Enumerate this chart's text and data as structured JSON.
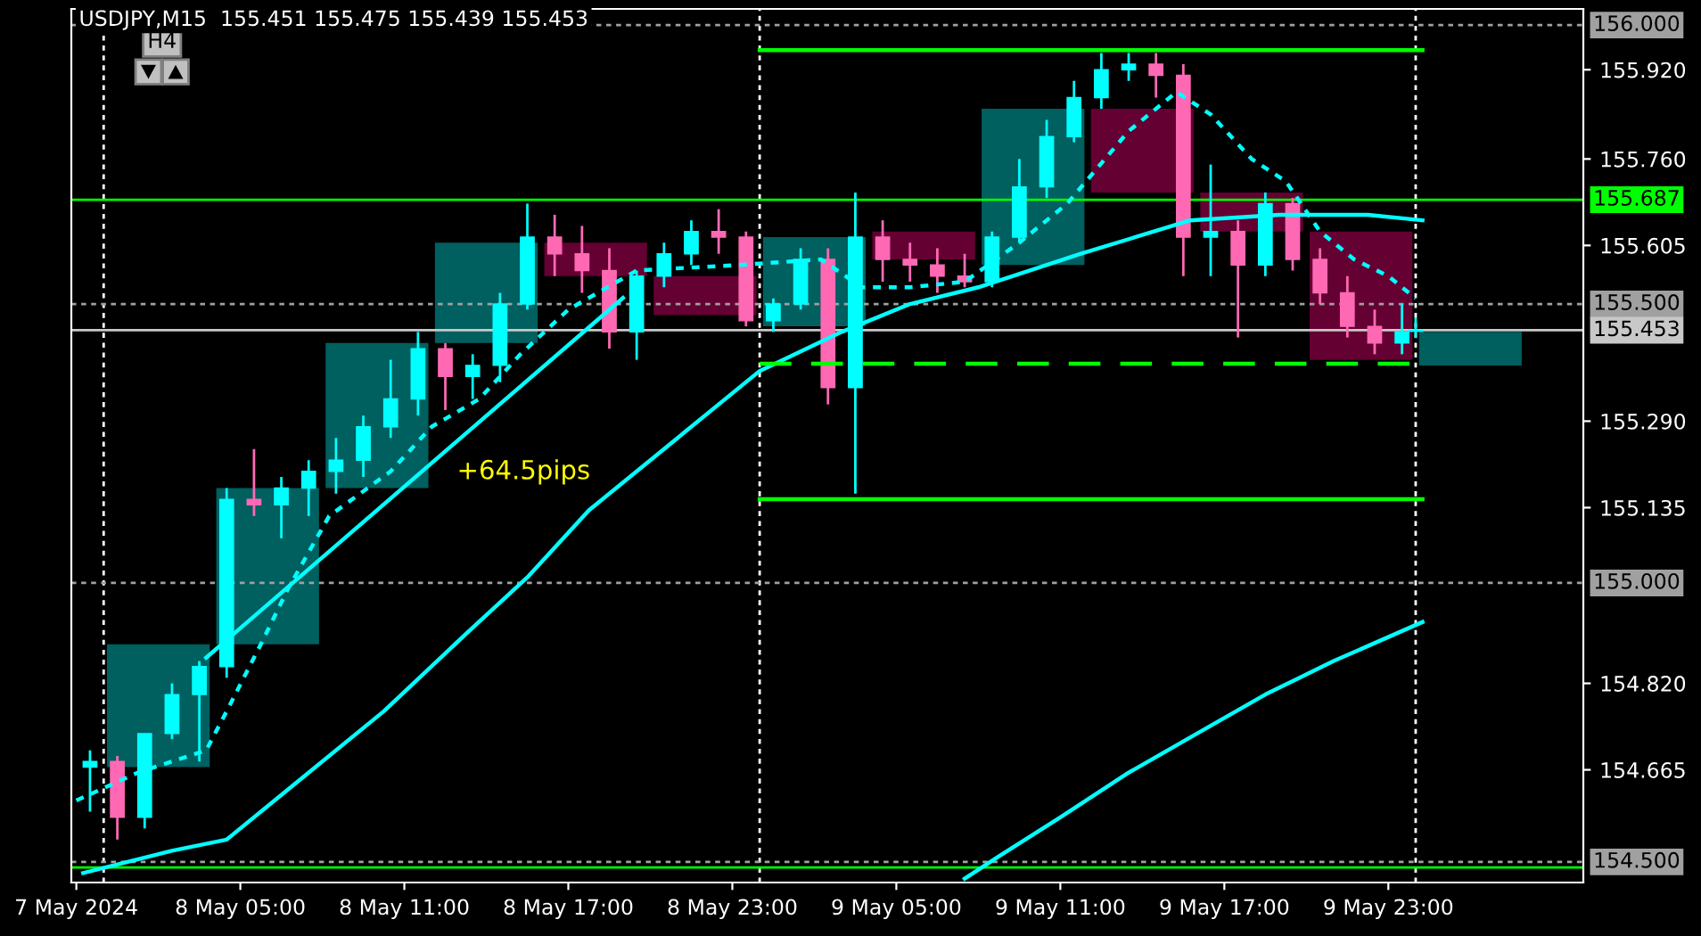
{
  "chart_data": {
    "type": "candlestick",
    "title": "USDJPY,M15  155.451 155.475 155.439 155.453",
    "annotations": [
      "H4",
      "+64.5pips"
    ],
    "xlim": [
      "2024-05-07T22:49",
      "2024-05-10T06:08"
    ],
    "ylim": [
      154.463,
      156.029
    ],
    "xticks": [
      {
        "value": "2024-05-07T23:00",
        "label": "7 May 2024"
      },
      {
        "value": "2024-05-08T05:00",
        "label": "8 May 05:00"
      },
      {
        "value": "2024-05-08T11:00",
        "label": "8 May 11:00"
      },
      {
        "value": "2024-05-08T17:00",
        "label": "8 May 17:00"
      },
      {
        "value": "2024-05-08T23:00",
        "label": "8 May 23:00"
      },
      {
        "value": "2024-05-09T05:00",
        "label": "9 May 05:00"
      },
      {
        "value": "2024-05-09T11:00",
        "label": "9 May 11:00"
      },
      {
        "value": "2024-05-09T17:00",
        "label": "9 May 17:00"
      },
      {
        "value": "2024-05-09T23:00",
        "label": "9 May 23:00"
      }
    ],
    "yticks": [
      {
        "value": 155.92,
        "label": "155.920"
      },
      {
        "value": 155.76,
        "label": "155.760"
      },
      {
        "value": 155.605,
        "label": "155.605"
      },
      {
        "value": 155.29,
        "label": "155.290"
      },
      {
        "value": 155.135,
        "label": "155.135"
      },
      {
        "value": 154.82,
        "label": "154.820"
      },
      {
        "value": 154.665,
        "label": "154.665"
      }
    ],
    "grid": false,
    "legend": false,
    "ref_lines": [
      {
        "axis": "x",
        "value": "2024-05-08T00:00",
        "color": "#ffffff",
        "line_style": "dotted"
      },
      {
        "axis": "x",
        "value": "2024-05-09T00:00",
        "color": "#ffffff",
        "line_style": "dotted"
      },
      {
        "axis": "x",
        "value": "2024-05-10T00:00",
        "color": "#ffffff",
        "line_style": "dotted"
      },
      {
        "axis": "y",
        "value": 156.0,
        "label": "156.000",
        "color": "#a0a0a0",
        "line_style": "dotted"
      },
      {
        "axis": "y",
        "value": 155.687,
        "label": "155.687",
        "color": "#00ff00",
        "line_style": "solid"
      },
      {
        "axis": "y",
        "value": 155.5,
        "label": "155.500",
        "color": "#a0a0a0",
        "line_style": "dotted"
      },
      {
        "axis": "y",
        "value": 155.453,
        "label": "155.453",
        "color": "#c8c8c8",
        "line_style": "solid"
      },
      {
        "axis": "y",
        "value": 155.0,
        "label": "155.000",
        "color": "#a0a0a0",
        "line_style": "dotted"
      },
      {
        "axis": "y",
        "value": 154.5,
        "label": "154.500",
        "color": "#a0a0a0",
        "line_style": "dotted"
      },
      {
        "axis": "y",
        "value": 154.49,
        "color": "#00ff00",
        "line_style": "solid"
      }
    ],
    "series": [
      {
        "type": "bar",
        "x": [
          "2024-05-08T02:00",
          "2024-05-08T06:00",
          "2024-05-08T10:00",
          "2024-05-08T14:00",
          "2024-05-08T18:00",
          "2024-05-08T22:00",
          "2024-05-09T02:00",
          "2024-05-09T06:00",
          "2024-05-09T10:00",
          "2024-05-09T14:00",
          "2024-05-09T18:00",
          "2024-05-09T22:00",
          "2024-05-10T02:00"
        ],
        "base": [
          154.67,
          154.89,
          155.17,
          155.43,
          155.55,
          155.48,
          155.46,
          155.58,
          155.57,
          155.7,
          155.63,
          155.4,
          155.39
        ],
        "values": [
          0.22,
          0.28,
          0.26,
          0.18,
          0.06,
          0.07,
          0.16,
          0.05,
          0.28,
          0.15,
          0.07,
          0.23,
          0.06
        ],
        "colors": [
          "#005f5f",
          "#005f5f",
          "#005f5f",
          "#005f5f",
          "#640032",
          "#640032",
          "#005f5f",
          "#640032",
          "#005f5f",
          "#640032",
          "#640032",
          "#640032",
          "#005f5f"
        ]
      },
      {
        "type": "line",
        "color": "#00ffff",
        "line_style": "solid",
        "x": [
          "2024-05-07T23:15",
          "2024-05-08T02:30",
          "2024-05-08T04:30",
          "2024-05-08T07:00",
          "2024-05-08T10:15",
          "2024-05-08T13:30",
          "2024-05-08T15:30",
          "2024-05-08T17:45",
          "2024-05-08T21:00",
          "2024-05-09T00:00",
          "2024-05-09T03:00",
          "2024-05-09T05:30",
          "2024-05-09T08:00",
          "2024-05-09T11:45",
          "2024-05-09T13:45",
          "2024-05-09T15:45",
          "2024-05-09T19:00",
          "2024-05-09T22:15",
          "2024-05-10T00:15"
        ],
        "values": [
          154.48,
          154.52,
          154.54,
          154.64,
          154.77,
          154.92,
          155.01,
          155.13,
          155.26,
          155.38,
          155.45,
          155.5,
          155.53,
          155.59,
          155.62,
          155.65,
          155.66,
          155.66,
          155.65
        ]
      },
      {
        "type": "line",
        "color": "#00ffff",
        "line_style": "dotted",
        "x": [
          "2024-05-07T23:00",
          "2024-05-08T01:15",
          "2024-05-08T03:45",
          "2024-05-08T04:30",
          "2024-05-08T05:45",
          "2024-05-08T06:45",
          "2024-05-08T08:15",
          "2024-05-08T10:30",
          "2024-05-08T12:00",
          "2024-05-08T13:45",
          "2024-05-08T15:15",
          "2024-05-08T17:00",
          "2024-05-08T19:30",
          "2024-05-08T23:15",
          "2024-05-09T02:15",
          "2024-05-09T03:45",
          "2024-05-09T05:30",
          "2024-05-09T07:30",
          "2024-05-09T09:30",
          "2024-05-09T11:15",
          "2024-05-09T13:30",
          "2024-05-09T15:15",
          "2024-05-09T16:30",
          "2024-05-09T18:00",
          "2024-05-09T19:15",
          "2024-05-09T20:30",
          "2024-05-09T21:45",
          "2024-05-09T23:00",
          "2024-05-10T00:00"
        ],
        "values": [
          154.61,
          154.66,
          154.7,
          154.77,
          154.89,
          154.99,
          155.12,
          155.2,
          155.28,
          155.33,
          155.41,
          155.49,
          155.56,
          155.57,
          155.58,
          155.53,
          155.53,
          155.54,
          155.61,
          155.68,
          155.81,
          155.88,
          155.84,
          155.76,
          155.72,
          155.63,
          155.58,
          155.55,
          155.51
        ]
      },
      {
        "type": "line",
        "color": "#00ffff",
        "line_style": "solid",
        "x": [
          "2024-05-09T07:30",
          "2024-05-09T08:45",
          "2024-05-09T11:00",
          "2024-05-09T13:30",
          "2024-05-09T16:00",
          "2024-05-09T18:30",
          "2024-05-09T21:00",
          "2024-05-10T00:15"
        ],
        "values": [
          154.47,
          154.51,
          154.58,
          154.66,
          154.73,
          154.8,
          154.86,
          154.93
        ]
      },
      {
        "type": "line",
        "color": "#00ffff",
        "line_style": "solid",
        "x": [
          "2024-05-08T03:45",
          "2024-05-08T19:00"
        ],
        "values": [
          154.866,
          155.511
        ]
      },
      {
        "type": "line",
        "color": "#00ff00",
        "line_style": "solid",
        "x": [
          "2024-05-09T00:00",
          "2024-05-10T00:15"
        ],
        "values": [
          155.955,
          155.955
        ]
      },
      {
        "type": "line",
        "color": "#00ff00",
        "line_style": "solid",
        "x": [
          "2024-05-09T00:00",
          "2024-05-10T00:15"
        ],
        "values": [
          155.15,
          155.15
        ]
      },
      {
        "type": "line",
        "color": "#00ff00",
        "line_style": "dashed",
        "x": [
          "2024-05-09T00:00",
          "2024-05-10T00:00"
        ],
        "values": [
          155.393,
          155.393
        ]
      },
      {
        "color": "#00ffff",
        "x": [
          "2024-05-07T23:30",
          "2024-05-08T01:30",
          "2024-05-08T02:30",
          "2024-05-08T03:30",
          "2024-05-08T04:30",
          "2024-05-08T06:30",
          "2024-05-08T07:30",
          "2024-05-08T08:30",
          "2024-05-08T09:30",
          "2024-05-08T10:30",
          "2024-05-08T11:30",
          "2024-05-08T13:30",
          "2024-05-08T14:30",
          "2024-05-08T15:30",
          "2024-05-08T19:30",
          "2024-05-08T20:30",
          "2024-05-08T21:30",
          "2024-05-09T00:30",
          "2024-05-09T01:30",
          "2024-05-09T03:30",
          "2024-05-09T08:30",
          "2024-05-09T09:30",
          "2024-05-09T10:30",
          "2024-05-09T11:30",
          "2024-05-09T12:30",
          "2024-05-09T13:30",
          "2024-05-09T16:30",
          "2024-05-09T18:30",
          "2024-05-09T23:30",
          "2024-05-10T00:00"
        ],
        "ohlc": [
          [
            154.67,
            154.7,
            154.59,
            154.68
          ],
          [
            154.58,
            154.73,
            154.56,
            154.73
          ],
          [
            154.73,
            154.82,
            154.72,
            154.8
          ],
          [
            154.8,
            154.86,
            154.68,
            154.85
          ],
          [
            154.85,
            155.17,
            154.83,
            155.15
          ],
          [
            155.14,
            155.19,
            155.08,
            155.17
          ],
          [
            155.17,
            155.22,
            155.12,
            155.2
          ],
          [
            155.2,
            155.26,
            155.16,
            155.22
          ],
          [
            155.22,
            155.3,
            155.19,
            155.28
          ],
          [
            155.28,
            155.4,
            155.26,
            155.33
          ],
          [
            155.33,
            155.45,
            155.3,
            155.42
          ],
          [
            155.37,
            155.41,
            155.33,
            155.39
          ],
          [
            155.39,
            155.52,
            155.36,
            155.5
          ],
          [
            155.5,
            155.68,
            155.49,
            155.62
          ],
          [
            155.45,
            155.56,
            155.4,
            155.55
          ],
          [
            155.55,
            155.61,
            155.53,
            155.59
          ],
          [
            155.59,
            155.65,
            155.57,
            155.63
          ],
          [
            155.47,
            155.51,
            155.45,
            155.5
          ],
          [
            155.5,
            155.6,
            155.49,
            155.58
          ],
          [
            155.35,
            155.7,
            155.16,
            155.62
          ],
          [
            155.54,
            155.63,
            155.53,
            155.62
          ],
          [
            155.62,
            155.76,
            155.61,
            155.71
          ],
          [
            155.71,
            155.83,
            155.69,
            155.8
          ],
          [
            155.8,
            155.9,
            155.79,
            155.87
          ],
          [
            155.87,
            155.95,
            155.85,
            155.92
          ],
          [
            155.92,
            155.95,
            155.9,
            155.93
          ],
          [
            155.62,
            155.75,
            155.55,
            155.63
          ],
          [
            155.57,
            155.7,
            155.55,
            155.68
          ],
          [
            155.43,
            155.5,
            155.41,
            155.45
          ],
          [
            155.451,
            155.475,
            155.439,
            155.453
          ]
        ]
      },
      {
        "color": "#ff69b4",
        "x": [
          "2024-05-08T00:30",
          "2024-05-08T05:30",
          "2024-05-08T12:30",
          "2024-05-08T16:30",
          "2024-05-08T17:30",
          "2024-05-08T18:30",
          "2024-05-08T22:30",
          "2024-05-08T23:30",
          "2024-05-09T02:30",
          "2024-05-09T04:30",
          "2024-05-09T05:30",
          "2024-05-09T06:30",
          "2024-05-09T07:30",
          "2024-05-09T14:30",
          "2024-05-09T15:30",
          "2024-05-09T17:30",
          "2024-05-09T19:30",
          "2024-05-09T20:30",
          "2024-05-09T21:30",
          "2024-05-09T22:30"
        ],
        "ohlc": [
          [
            154.68,
            154.69,
            154.54,
            154.58
          ],
          [
            155.15,
            155.24,
            155.12,
            155.14
          ],
          [
            155.42,
            155.43,
            155.31,
            155.37
          ],
          [
            155.62,
            155.66,
            155.55,
            155.59
          ],
          [
            155.59,
            155.64,
            155.52,
            155.56
          ],
          [
            155.56,
            155.6,
            155.42,
            155.45
          ],
          [
            155.63,
            155.67,
            155.59,
            155.62
          ],
          [
            155.62,
            155.63,
            155.46,
            155.47
          ],
          [
            155.58,
            155.6,
            155.32,
            155.35
          ],
          [
            155.62,
            155.65,
            155.54,
            155.58
          ],
          [
            155.58,
            155.61,
            155.54,
            155.57
          ],
          [
            155.57,
            155.6,
            155.52,
            155.55
          ],
          [
            155.55,
            155.59,
            155.53,
            155.54
          ],
          [
            155.93,
            155.95,
            155.87,
            155.91
          ],
          [
            155.91,
            155.93,
            155.55,
            155.62
          ],
          [
            155.63,
            155.65,
            155.44,
            155.57
          ],
          [
            155.68,
            155.69,
            155.56,
            155.58
          ],
          [
            155.58,
            155.6,
            155.5,
            155.52
          ],
          [
            155.52,
            155.55,
            155.44,
            155.46
          ],
          [
            155.46,
            155.49,
            155.41,
            155.43
          ]
        ]
      }
    ]
  }
}
